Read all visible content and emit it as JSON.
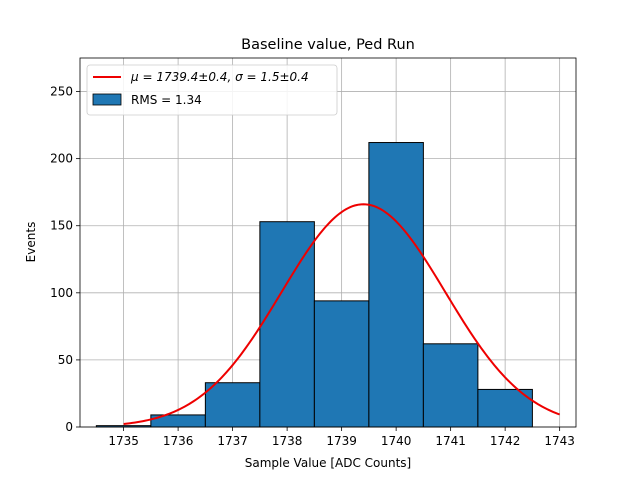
{
  "chart_data": {
    "type": "bar",
    "title": "Baseline value, Ped Run",
    "xlabel": "Sample Value [ADC Counts]",
    "ylabel": "Events",
    "xlim": [
      1734.2,
      1743.3
    ],
    "ylim": [
      0,
      275
    ],
    "xticks": [
      1735,
      1736,
      1737,
      1738,
      1739,
      1740,
      1741,
      1742,
      1743
    ],
    "yticks": [
      0,
      50,
      100,
      150,
      200,
      250
    ],
    "grid": true,
    "bar_color": "#1f77b4",
    "fit_color": "#ee0000",
    "histogram": {
      "name": "RMS = 1.34",
      "bins": [
        {
          "left": 1734.5,
          "right": 1735.5,
          "count": 1
        },
        {
          "left": 1735.5,
          "right": 1736.5,
          "count": 9
        },
        {
          "left": 1736.5,
          "right": 1737.5,
          "count": 33
        },
        {
          "left": 1737.5,
          "right": 1738.5,
          "count": 153
        },
        {
          "left": 1738.5,
          "right": 1739.5,
          "count": 94
        },
        {
          "left": 1739.5,
          "right": 1740.5,
          "count": 212
        },
        {
          "left": 1740.5,
          "right": 1741.5,
          "count": 62
        },
        {
          "left": 1741.5,
          "right": 1742.5,
          "count": 28
        }
      ]
    },
    "fit": {
      "name_mu_part": "μ = 1739.4±0.4, ",
      "name_sigma_part": "σ = 1.5±0.4",
      "mu": 1739.4,
      "sigma": 1.5,
      "amplitude": 166,
      "x_range": [
        1735,
        1743
      ]
    },
    "legend_position": "top-left"
  }
}
